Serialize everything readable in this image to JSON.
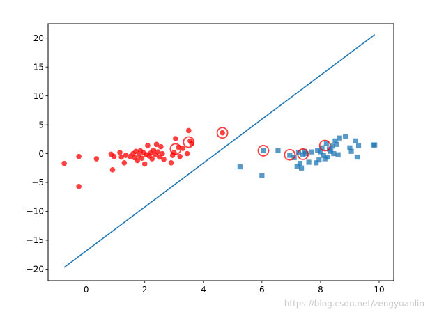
{
  "chart_data": {
    "type": "scatter",
    "title": "",
    "xlabel": "",
    "ylabel": "",
    "xlim": [
      -1.3,
      10.5
    ],
    "ylim": [
      -22,
      22.5
    ],
    "xticks": [
      0,
      2,
      4,
      6,
      8,
      10
    ],
    "yticks": [
      -20,
      -15,
      -10,
      -5,
      0,
      5,
      10,
      15,
      20
    ],
    "grid": false,
    "legend": "none",
    "series": [
      {
        "type": "scatter",
        "marker": "circle",
        "color": "#ff0000",
        "points": [
          [
            -0.75,
            -1.7
          ],
          [
            -0.25,
            -0.5
          ],
          [
            -0.25,
            -5.7
          ],
          [
            0.35,
            -0.9
          ],
          [
            0.85,
            -0.1
          ],
          [
            0.9,
            -2.8
          ],
          [
            0.95,
            -0.5
          ],
          [
            1.15,
            0.2
          ],
          [
            1.2,
            -0.6
          ],
          [
            1.3,
            -1.6
          ],
          [
            1.35,
            -0.3
          ],
          [
            1.5,
            -0.5
          ],
          [
            1.6,
            0.0
          ],
          [
            1.65,
            -0.7
          ],
          [
            1.7,
            0.4
          ],
          [
            1.75,
            -1.2
          ],
          [
            1.8,
            -0.3
          ],
          [
            1.85,
            0.5
          ],
          [
            1.9,
            -0.8
          ],
          [
            1.95,
            0.2
          ],
          [
            2.0,
            -1.8
          ],
          [
            2.05,
            -0.2
          ],
          [
            2.1,
            1.4
          ],
          [
            2.15,
            -0.4
          ],
          [
            2.2,
            0.1
          ],
          [
            2.25,
            -0.9
          ],
          [
            2.3,
            0.6
          ],
          [
            2.35,
            -0.2
          ],
          [
            2.4,
            1.6
          ],
          [
            2.45,
            0.3
          ],
          [
            2.5,
            -0.6
          ],
          [
            2.55,
            1.2
          ],
          [
            2.6,
            0.0
          ],
          [
            2.65,
            -1.0
          ],
          [
            2.9,
            -1.6
          ],
          [
            2.95,
            -0.3
          ],
          [
            3.0,
            0.2
          ],
          [
            3.05,
            2.6
          ],
          [
            3.15,
            1.1
          ],
          [
            3.2,
            -0.5
          ],
          [
            3.3,
            0.9
          ],
          [
            3.45,
            0.0
          ],
          [
            3.5,
            4.0
          ],
          [
            3.55,
            2.2
          ],
          [
            3.6,
            1.8
          ],
          [
            4.65,
            3.6
          ]
        ]
      },
      {
        "type": "scatter",
        "marker": "square",
        "color": "#1f77b4",
        "points": [
          [
            5.25,
            -2.3
          ],
          [
            6.0,
            -3.8
          ],
          [
            6.05,
            0.5
          ],
          [
            6.55,
            0.5
          ],
          [
            6.95,
            -0.3
          ],
          [
            7.1,
            -0.7
          ],
          [
            7.2,
            -2.2
          ],
          [
            7.25,
            0.2
          ],
          [
            7.3,
            -1.7
          ],
          [
            7.35,
            -2.5
          ],
          [
            7.4,
            -0.2
          ],
          [
            7.45,
            0.4
          ],
          [
            7.5,
            0.0
          ],
          [
            7.6,
            -1.5
          ],
          [
            7.7,
            0.3
          ],
          [
            7.85,
            -1.6
          ],
          [
            7.9,
            0.6
          ],
          [
            7.95,
            -1.1
          ],
          [
            8.0,
            0.3
          ],
          [
            8.05,
            1.0
          ],
          [
            8.1,
            -0.3
          ],
          [
            8.15,
            -0.9
          ],
          [
            8.2,
            1.8
          ],
          [
            8.25,
            -0.6
          ],
          [
            8.3,
            0.8
          ],
          [
            8.35,
            0.4
          ],
          [
            8.4,
            1.3
          ],
          [
            8.45,
            0.0
          ],
          [
            8.5,
            2.2
          ],
          [
            8.55,
            1.6
          ],
          [
            8.6,
            -0.2
          ],
          [
            8.65,
            2.7
          ],
          [
            8.85,
            3.0
          ],
          [
            9.0,
            1.0
          ],
          [
            9.05,
            0.4
          ],
          [
            9.2,
            2.2
          ],
          [
            9.25,
            -0.6
          ],
          [
            9.3,
            1.4
          ],
          [
            9.8,
            1.5
          ],
          [
            9.85,
            1.5
          ]
        ]
      },
      {
        "type": "scatter",
        "marker": "open-circle",
        "color": "#ff0000",
        "role": "highlighted",
        "points": [
          [
            3.05,
            0.8
          ],
          [
            3.5,
            2.0
          ],
          [
            4.65,
            3.6
          ],
          [
            6.05,
            0.5
          ],
          [
            6.95,
            -0.2
          ],
          [
            7.4,
            -0.1
          ],
          [
            8.15,
            1.4
          ]
        ]
      },
      {
        "type": "line",
        "color": "#1f77b4",
        "points": [
          [
            -0.75,
            -19.7
          ],
          [
            9.85,
            20.6
          ]
        ]
      }
    ]
  },
  "watermark": "https://blog.csdn.net/zengyuanlin"
}
